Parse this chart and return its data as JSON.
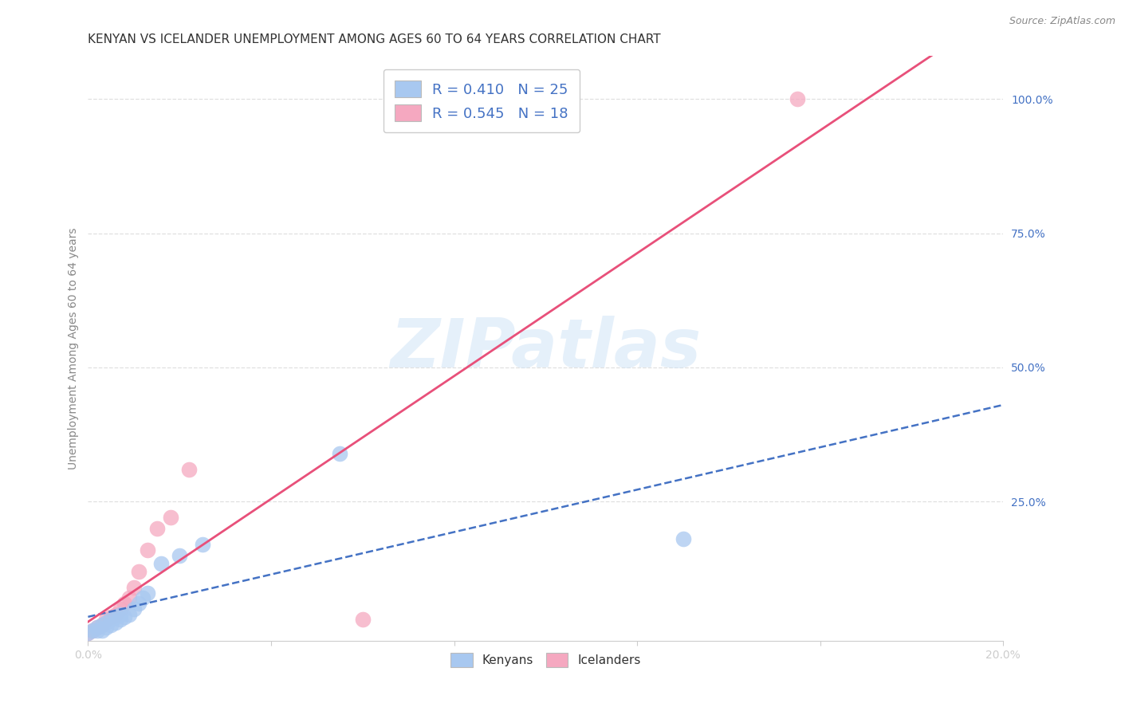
{
  "title": "KENYAN VS ICELANDER UNEMPLOYMENT AMONG AGES 60 TO 64 YEARS CORRELATION CHART",
  "source": "Source: ZipAtlas.com",
  "ylabel": "Unemployment Among Ages 60 to 64 years",
  "xlim": [
    0.0,
    0.2
  ],
  "ylim": [
    -0.01,
    1.08
  ],
  "x_ticks": [
    0.0,
    0.04,
    0.08,
    0.12,
    0.16,
    0.2
  ],
  "x_tick_labels": [
    "0.0%",
    "",
    "",
    "",
    "",
    "20.0%"
  ],
  "y_tick_labels_right": [
    "100.0%",
    "75.0%",
    "50.0%",
    "25.0%"
  ],
  "y_tick_vals_right": [
    1.0,
    0.75,
    0.5,
    0.25
  ],
  "kenyan_color": "#a8c8f0",
  "icelander_color": "#f5a8c0",
  "kenyan_line_color": "#4472c4",
  "icelander_line_color": "#e8507a",
  "background_color": "#ffffff",
  "grid_color": "#e0e0e0",
  "watermark_text": "ZIPatlas",
  "kenyan_x": [
    0.0,
    0.001,
    0.002,
    0.002,
    0.003,
    0.003,
    0.004,
    0.004,
    0.005,
    0.005,
    0.006,
    0.006,
    0.007,
    0.007,
    0.008,
    0.009,
    0.01,
    0.011,
    0.012,
    0.013,
    0.016,
    0.02,
    0.025,
    0.055,
    0.13
  ],
  "kenyan_y": [
    0.005,
    0.01,
    0.01,
    0.015,
    0.01,
    0.02,
    0.015,
    0.025,
    0.02,
    0.03,
    0.025,
    0.035,
    0.03,
    0.04,
    0.035,
    0.04,
    0.05,
    0.06,
    0.07,
    0.08,
    0.135,
    0.15,
    0.17,
    0.34,
    0.18
  ],
  "icelander_x": [
    0.0,
    0.001,
    0.002,
    0.003,
    0.004,
    0.005,
    0.006,
    0.007,
    0.008,
    0.009,
    0.01,
    0.011,
    0.013,
    0.015,
    0.018,
    0.022,
    0.06,
    0.155
  ],
  "icelander_y": [
    0.005,
    0.01,
    0.015,
    0.02,
    0.03,
    0.035,
    0.04,
    0.05,
    0.06,
    0.07,
    0.09,
    0.12,
    0.16,
    0.2,
    0.22,
    0.31,
    0.03,
    1.0
  ],
  "legend_kenyan_label": "R = 0.410   N = 25",
  "legend_icelander_label": "R = 0.545   N = 18",
  "title_fontsize": 11,
  "axis_label_fontsize": 10,
  "tick_fontsize": 10,
  "legend_fontsize": 13
}
